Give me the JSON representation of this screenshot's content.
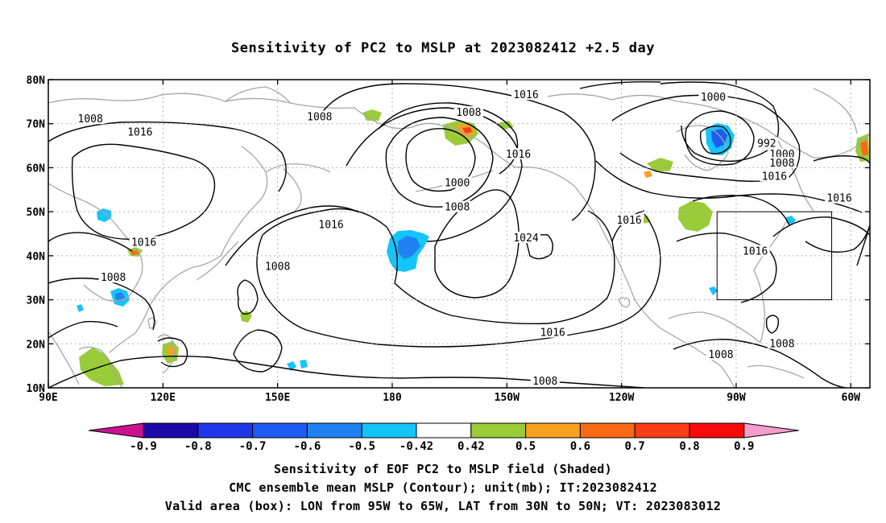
{
  "title": "Sensitivity of PC2 to MSLP at 2023082412 +2.5 day",
  "map": {
    "lon_range": [
      90,
      305
    ],
    "lat_range": [
      10,
      80
    ],
    "x_ticks": [
      {
        "lon": 90,
        "label": "90E"
      },
      {
        "lon": 120,
        "label": "120E"
      },
      {
        "lon": 150,
        "label": "150E"
      },
      {
        "lon": 180,
        "label": "180"
      },
      {
        "lon": 210,
        "label": "150W"
      },
      {
        "lon": 240,
        "label": "120W"
      },
      {
        "lon": 270,
        "label": "90W"
      },
      {
        "lon": 300,
        "label": "60W"
      }
    ],
    "y_ticks": [
      {
        "lat": 10,
        "label": "10N"
      },
      {
        "lat": 20,
        "label": "20N"
      },
      {
        "lat": 30,
        "label": "30N"
      },
      {
        "lat": 40,
        "label": "40N"
      },
      {
        "lat": 50,
        "label": "50N"
      },
      {
        "lat": 60,
        "label": "60N"
      },
      {
        "lat": 70,
        "label": "70N"
      },
      {
        "lat": 80,
        "label": "80N"
      }
    ],
    "grid": "dotted",
    "valid_box": {
      "lon_min": 265,
      "lon_max": 295,
      "lat_min": 30,
      "lat_max": 50
    },
    "contour_labels": [
      {
        "text": "1016",
        "lon": 215,
        "lat": 76.5
      },
      {
        "text": "1000",
        "lon": 264,
        "lat": 76
      },
      {
        "text": "1008",
        "lon": 200,
        "lat": 72.5
      },
      {
        "text": "1008",
        "lon": 161,
        "lat": 71.5
      },
      {
        "text": "1008",
        "lon": 101,
        "lat": 71
      },
      {
        "text": "1016",
        "lon": 114,
        "lat": 68
      },
      {
        "text": "992",
        "lon": 278,
        "lat": 65.5
      },
      {
        "text": "1000",
        "lon": 282,
        "lat": 63
      },
      {
        "text": "1016",
        "lon": 213,
        "lat": 63
      },
      {
        "text": "1008",
        "lon": 282,
        "lat": 61
      },
      {
        "text": "1000",
        "lon": 197,
        "lat": 56.5
      },
      {
        "text": "1016",
        "lon": 280,
        "lat": 58
      },
      {
        "text": "1008",
        "lon": 197,
        "lat": 51
      },
      {
        "text": "1016",
        "lon": 297,
        "lat": 53
      },
      {
        "text": "1016",
        "lon": 242,
        "lat": 48
      },
      {
        "text": "1016",
        "lon": 164,
        "lat": 47
      },
      {
        "text": "1024",
        "lon": 215,
        "lat": 44
      },
      {
        "text": "1016",
        "lon": 115,
        "lat": 43
      },
      {
        "text": "1016",
        "lon": 275,
        "lat": 41
      },
      {
        "text": "1008",
        "lon": 150,
        "lat": 37.5
      },
      {
        "text": "1008",
        "lon": 107,
        "lat": 35
      },
      {
        "text": "1016",
        "lon": 222,
        "lat": 22.5
      },
      {
        "text": "1008",
        "lon": 282,
        "lat": 20
      },
      {
        "text": "1008",
        "lon": 266,
        "lat": 17.5
      },
      {
        "text": "1008",
        "lon": 220,
        "lat": 11.5
      }
    ]
  },
  "colorbar": {
    "labels": [
      "-0.9",
      "-0.8",
      "-0.7",
      "-0.6",
      "-0.5",
      "-0.42",
      "0.42",
      "0.5",
      "0.6",
      "0.7",
      "0.8",
      "0.9"
    ],
    "colors": [
      "#1b0aa6",
      "#1f37e8",
      "#1e5cf2",
      "#1e82f2",
      "#14c4fa",
      "#ffffff",
      "#9acb39",
      "#f7a11e",
      "#f96a15",
      "#f93d15",
      "#f90a0a"
    ],
    "low_extend_color": "#cc1190",
    "high_extend_color": "#f49ccc"
  },
  "footer": {
    "line1": "Sensitivity of EOF PC2 to MSLP field (Shaded)",
    "line2": "CMC ensemble mean MSLP (Contour); unit(mb); IT:2023082412",
    "line3": "Valid area (box): LON from 95W to 65W, LAT from 30N to 50N; VT: 2023083012"
  }
}
